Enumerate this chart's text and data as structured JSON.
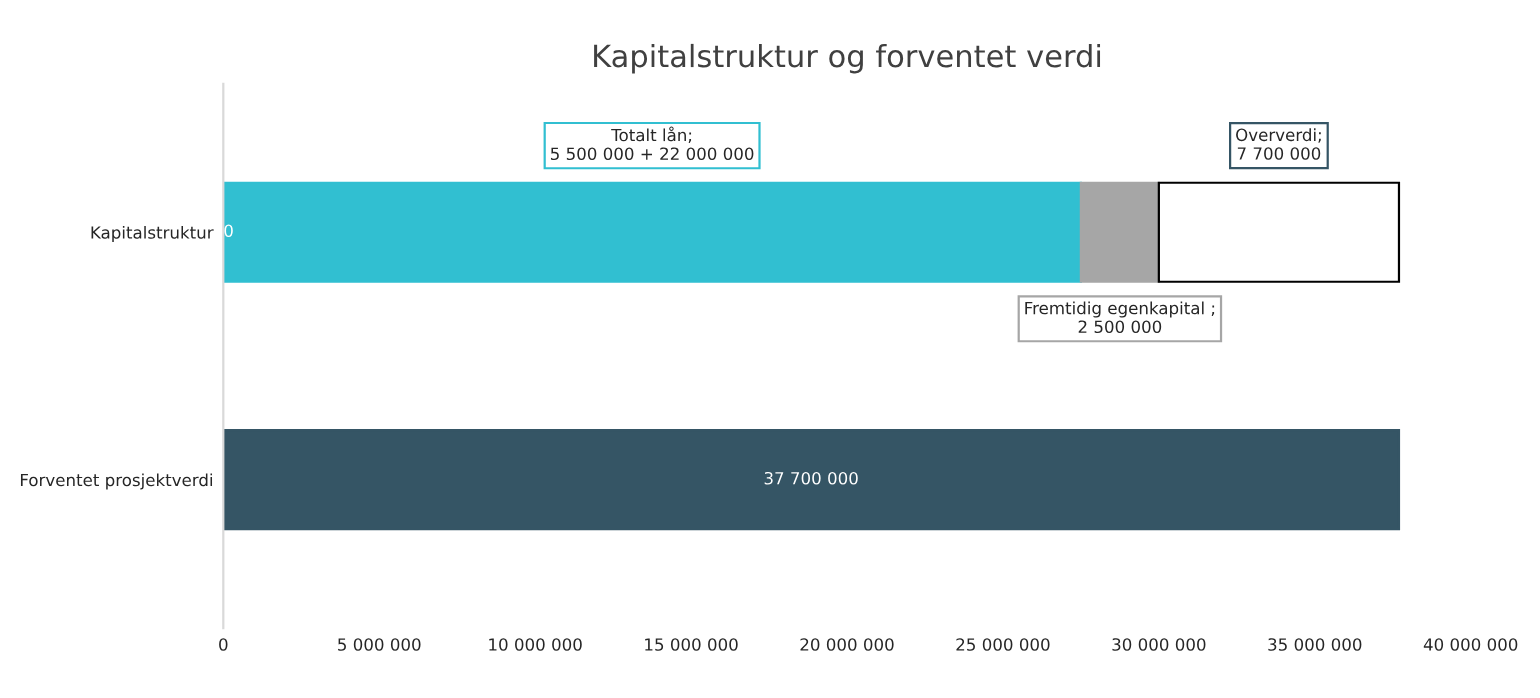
{
  "chart_data": {
    "type": "bar",
    "orientation": "horizontal",
    "stacked": true,
    "title": "Kapitalstruktur og forventet verdi",
    "categories": [
      "Kapitalstruktur",
      "Forventet prosjektverdi"
    ],
    "series": [
      {
        "color": "#31bfd1",
        "values": [
          0,
          null
        ],
        "value_labels": [
          "0",
          null
        ]
      },
      {
        "colors": [
          "#31bfd1",
          "#355565"
        ],
        "values": [
          27500000,
          37700000
        ],
        "value_labels": [
          null,
          "37 700 000"
        ]
      },
      {
        "color": "#a6a6a6",
        "values": [
          2500000,
          null
        ]
      },
      {
        "color": "#ffffff",
        "values": [
          7700000,
          null
        ]
      }
    ],
    "annotations": [
      "Totalt lån;\n5 500 000 + 22 000 000",
      "Fremtidig egenkapital ;\n2 500 000",
      "Oververdi;\n7 700 000"
    ],
    "xlim": [
      0,
      40000000
    ],
    "xticks": [
      {
        "value": 0,
        "label": "0"
      },
      {
        "value": 5000000,
        "label": "5 000 000"
      },
      {
        "value": 10000000,
        "label": "10 000 000"
      },
      {
        "value": 15000000,
        "label": "15 000 000"
      },
      {
        "value": 20000000,
        "label": "20 000 000"
      },
      {
        "value": 25000000,
        "label": "25 000 000"
      },
      {
        "value": 30000000,
        "label": "30 000 000"
      },
      {
        "value": 35000000,
        "label": "35 000 000"
      },
      {
        "value": 40000000,
        "label": "40 000 000"
      }
    ],
    "grid": false,
    "legend": false
  }
}
